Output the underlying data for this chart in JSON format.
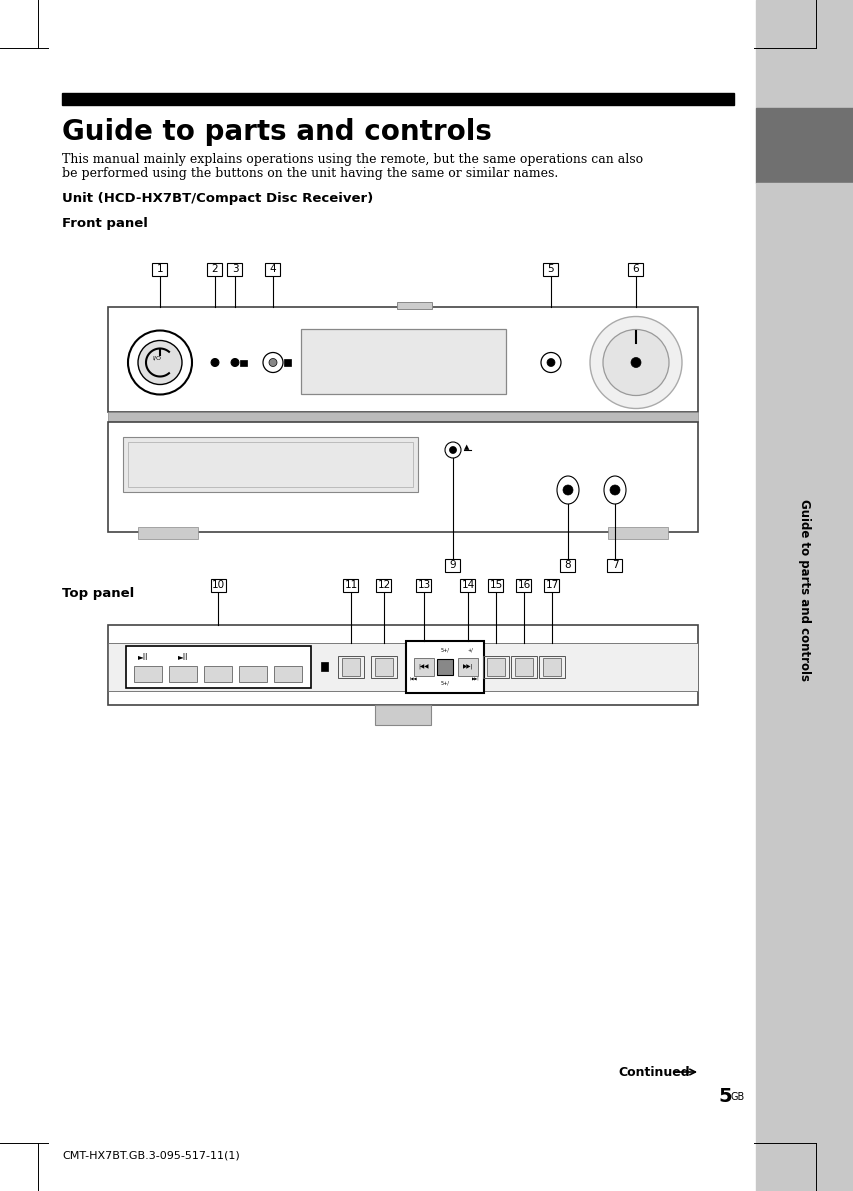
{
  "page_bg": "#ffffff",
  "sidebar_bg": "#c8c8c8",
  "sidebar_dark": "#707070",
  "title_bar_color": "#000000",
  "title": "Guide to parts and controls",
  "subtitle_line1": "This manual mainly explains operations using the remote, but the same operations can also",
  "subtitle_line2": "be performed using the buttons on the unit having the same or similar names.",
  "unit_label": "Unit (HCD-HX7BT/Compact Disc Receiver)",
  "front_panel_label": "Front panel",
  "top_panel_label": "Top panel",
  "continued_text": "Continued",
  "page_number": "5",
  "page_number_sup": "GB",
  "footer_text": "CMT-HX7BT.GB.3-095-517-11(1)",
  "sidebar_rotated_text": "Guide to parts and controls"
}
